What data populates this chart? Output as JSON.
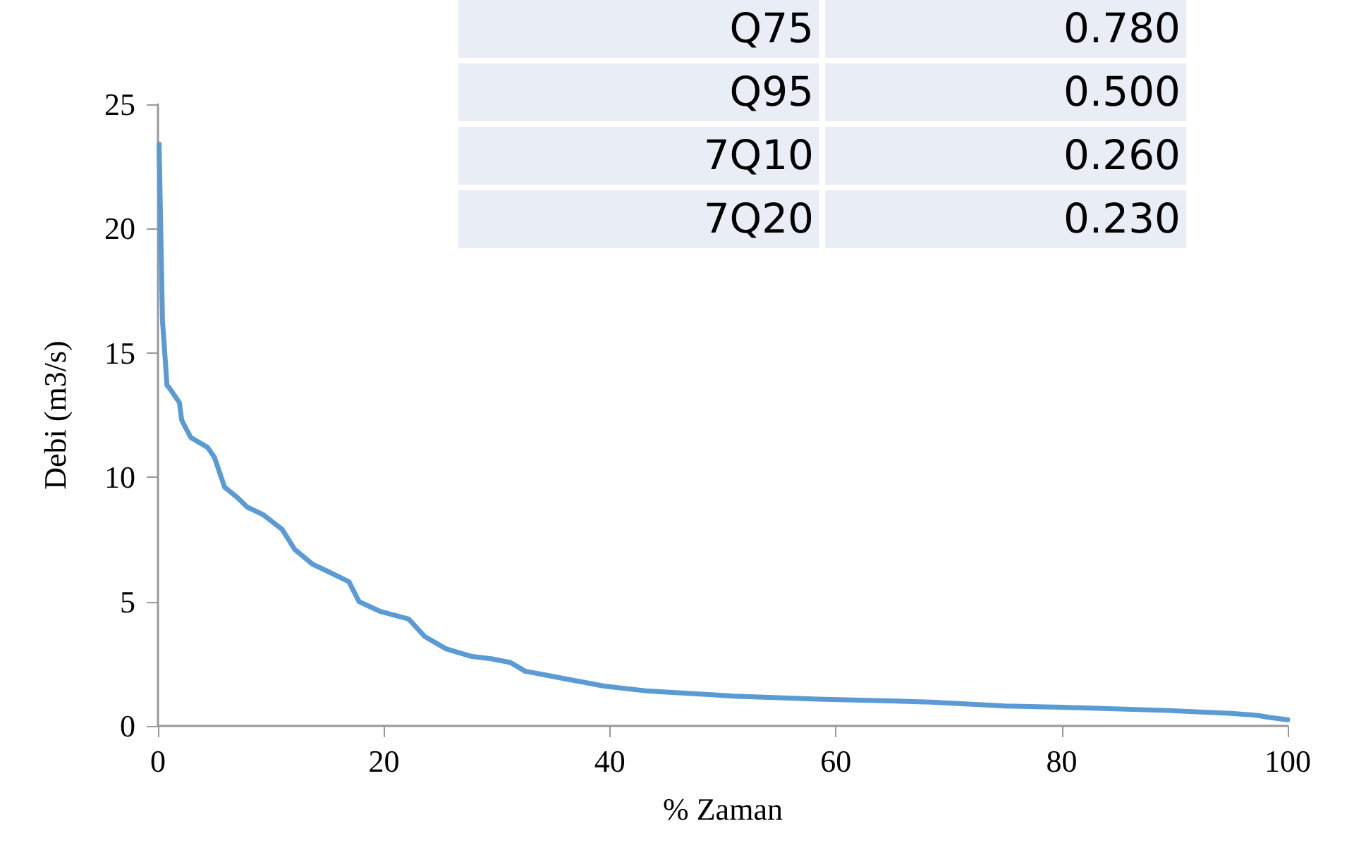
{
  "chart_data": {
    "type": "line",
    "xlabel": "% Zaman",
    "ylabel": "Debi (m3/s)",
    "x": [
      0.1,
      0.4,
      0.8,
      1.0,
      1.9,
      2.1,
      2.9,
      4.4,
      5.0,
      5.9,
      7.0,
      7.9,
      9.3,
      11,
      12.1,
      13.7,
      15.1,
      16.9,
      17.8,
      19.7,
      22.2,
      23.6,
      25.5,
      27.7,
      29.5,
      31.2,
      32.5,
      36,
      39.5,
      43.4,
      51,
      58.4,
      68.4,
      75,
      80,
      89.4,
      95,
      97.4,
      98.4,
      100
    ],
    "series": [
      {
        "color": "#5b9bd5",
        "values": [
          23.4,
          16.3,
          13.7,
          13.6,
          13.0,
          12.3,
          11.6,
          11.2,
          10.8,
          9.6,
          9.2,
          8.8,
          8.5,
          7.9,
          7.1,
          6.5,
          6.2,
          5.8,
          5.0,
          4.6,
          4.3,
          3.6,
          3.1,
          2.8,
          2.7,
          2.55,
          2.2,
          1.9,
          1.6,
          1.4,
          1.2,
          1.08,
          0.96,
          0.8,
          0.75,
          0.62,
          0.5,
          0.42,
          0.34,
          0.25
        ]
      }
    ],
    "xlim": [
      0,
      100
    ],
    "xticks": [
      0,
      20,
      40,
      60,
      80,
      100
    ],
    "ylim": [
      0,
      25
    ],
    "yticks": [
      0,
      5,
      10,
      15,
      20,
      25
    ],
    "marker": "none",
    "line_style": "solid",
    "grid": false,
    "annotations": [
      "Q75",
      "0.780",
      "Q95",
      "0.500",
      "7Q10",
      "0.260",
      "7Q20",
      "0.230"
    ]
  }
}
